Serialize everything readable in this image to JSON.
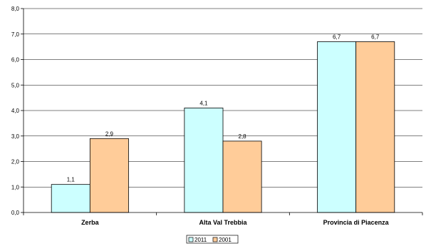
{
  "chart_data": {
    "type": "bar",
    "categories": [
      "Zerba",
      "Alta Val Trebbia",
      "Provincia di Piacenza"
    ],
    "series": [
      {
        "name": "2011",
        "values": [
          1.1,
          4.1,
          6.7
        ],
        "labels": [
          "1,1",
          "4,1",
          "6,7"
        ],
        "color": "#ccffff"
      },
      {
        "name": "2001",
        "values": [
          2.9,
          2.8,
          6.7
        ],
        "labels": [
          "2,9",
          "2,8",
          "6,7"
        ],
        "color": "#ffcc99"
      }
    ],
    "yticks": [
      "0,0",
      "1,0",
      "2,0",
      "3,0",
      "4,0",
      "5,0",
      "6,0",
      "7,0",
      "8,0"
    ],
    "ylim": [
      0,
      8
    ],
    "grid": true,
    "legend": "bottom-center",
    "title": "",
    "xlabel": "",
    "ylabel": ""
  }
}
